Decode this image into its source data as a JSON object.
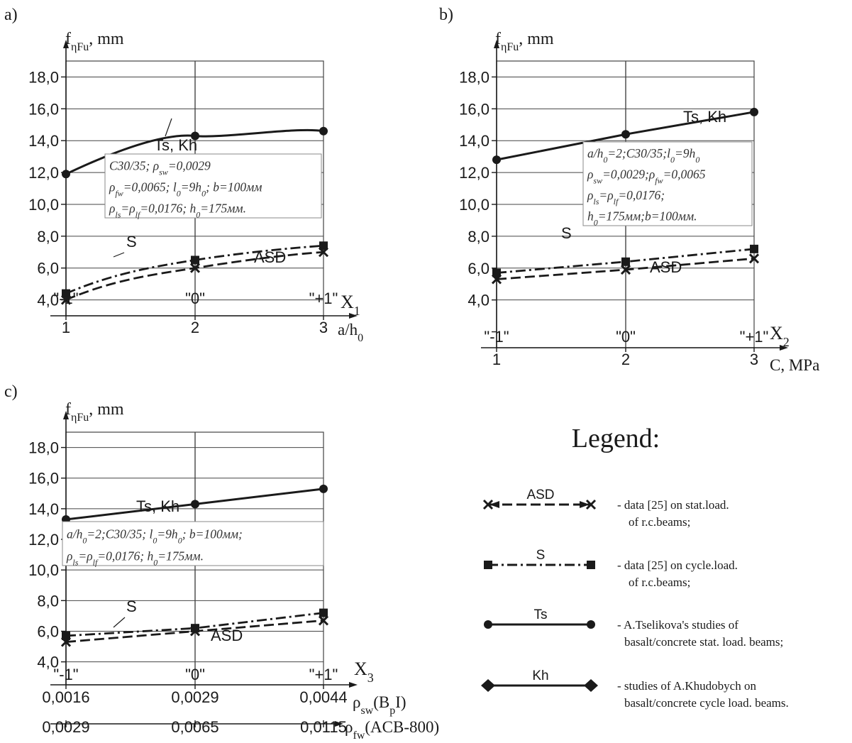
{
  "chart_data": [
    {
      "id": "a",
      "type": "line",
      "panel_label": "a)",
      "ylabel": "f",
      "ylabel_sub": "ηFu",
      "ylabel_unit": ", mm",
      "ylim": [
        3.0,
        19.0
      ],
      "yticks": [
        4.0,
        6.0,
        8.0,
        10.0,
        12.0,
        14.0,
        16.0,
        18.0
      ],
      "ytick_labels": [
        "4,0",
        "6,0",
        "8,0",
        "10,0",
        "12,0",
        "14,0",
        "16,0",
        "18,0"
      ],
      "x": [
        1,
        2,
        3
      ],
      "xtick_labels": [
        "1",
        "2",
        "3"
      ],
      "xlabel": "a/h",
      "xlabel_sub": "0",
      "coded_levels": [
        "\"-1\"",
        "\"0\"",
        "\"+1\""
      ],
      "factor": "X",
      "factor_sub": "1",
      "series": [
        {
          "key": "Ts",
          "values": [
            11.9,
            14.3,
            14.6
          ]
        },
        {
          "key": "S",
          "values": [
            4.4,
            6.5,
            7.4
          ]
        },
        {
          "key": "ASD",
          "values": [
            4.0,
            6.0,
            7.0
          ]
        }
      ],
      "labels": {
        "ts_kh": "Ts, Kh",
        "s": "S",
        "asd": "ASD"
      },
      "annotation": [
        "C30/35; ρ_sw=0,0029",
        "ρ_fw=0,0065; l_0=9h_0; b=100мм",
        "ρ_ls=ρ_lf=0,0176; h_0=175мм."
      ]
    },
    {
      "id": "b",
      "type": "line",
      "panel_label": "b)",
      "ylabel": "f",
      "ylabel_sub": "ηFu",
      "ylabel_unit": ", mm",
      "ylim": [
        1.0,
        19.0
      ],
      "yticks": [
        4.0,
        6.0,
        8.0,
        10.0,
        12.0,
        14.0,
        16.0,
        18.0
      ],
      "ytick_labels": [
        "4,0",
        "6,0",
        "8,0",
        "10,0",
        "12,0",
        "14,0",
        "16,0",
        "18,0"
      ],
      "x": [
        1,
        2,
        3
      ],
      "xtick_labels": [
        "1",
        "2",
        "3"
      ],
      "xlabel": "C, MPa",
      "coded_levels": [
        "\"-1\"",
        "\"0\"",
        "\"+1\""
      ],
      "factor": "X",
      "factor_sub": "2",
      "series": [
        {
          "key": "Ts",
          "values": [
            12.8,
            14.4,
            15.8
          ]
        },
        {
          "key": "S",
          "values": [
            5.7,
            6.4,
            7.2
          ]
        },
        {
          "key": "ASD",
          "values": [
            5.3,
            5.9,
            6.6
          ]
        }
      ],
      "labels": {
        "ts_kh": "Ts, Kh",
        "s": "S",
        "asd": "ASD"
      },
      "annotation": [
        "a/h_0=2;C30/35;l_0=9h_0",
        "ρ_sw=0,0029;ρ_fw=0,0065",
        "ρ_ls=ρ_lf=0,0176;",
        "h_0=175мм;b=100мм."
      ]
    },
    {
      "id": "c",
      "type": "line",
      "panel_label": "c)",
      "ylabel": "f",
      "ylabel_sub": "ηFu",
      "ylabel_unit": ", mm",
      "ylim": [
        2.5,
        19.0
      ],
      "yticks": [
        4.0,
        6.0,
        8.0,
        10.0,
        12.0,
        14.0,
        16.0,
        18.0
      ],
      "ytick_labels": [
        "4,0",
        "6,0",
        "8,0",
        "10,0",
        "12,0",
        "14,0",
        "16,0",
        "18,0"
      ],
      "x": [
        0.0016,
        0.0029,
        0.0044
      ],
      "xtick_labels": [
        "0,0016",
        "0,0029",
        "0,0044"
      ],
      "xlabel": "ρ",
      "xlabel_sub": "sw",
      "xlabel_rest": "(B",
      "xlabel_rest_sub": "p",
      "xlabel_end": "I)",
      "x2": [
        0.0029,
        0.0065,
        0.0115
      ],
      "x2tick_labels": [
        "0,0029",
        "0,0065",
        "0,0115"
      ],
      "x2label": "ρ",
      "x2label_sub": "fw",
      "x2label_rest": "(ACB-800)",
      "coded_levels": [
        "\"-1\"",
        "\"0\"",
        "\"+1\""
      ],
      "factor": "X",
      "factor_sub": "3",
      "series": [
        {
          "key": "Ts",
          "values": [
            13.3,
            14.3,
            15.3
          ]
        },
        {
          "key": "S",
          "values": [
            5.7,
            6.2,
            7.2
          ]
        },
        {
          "key": "ASD",
          "values": [
            5.3,
            6.0,
            6.7
          ]
        }
      ],
      "labels": {
        "ts_kh": "Ts, Kh",
        "s": "S",
        "asd": "ASD"
      },
      "annotation": [
        "a/h_0=2;C30/35; l_0=9h_0; b=100мм;",
        "ρ_ls=ρ_lf=0,0176; h_0=175мм."
      ]
    }
  ],
  "legend": {
    "title": "Legend:",
    "entries": [
      {
        "key": "ASD",
        "line": "dashed",
        "marker": "x",
        "label": "ASD",
        "text": [
          "- data [25] on stat.load.",
          "of r.c.beams;"
        ]
      },
      {
        "key": "S",
        "line": "dashdot",
        "marker": "square",
        "label": "S",
        "text": [
          "- data [25] on cycle.load.",
          "of r.c.beams;"
        ]
      },
      {
        "key": "Ts",
        "line": "solid",
        "marker": "circle",
        "label": "Ts",
        "text": [
          "- A.Tselikova's studies of",
          "basalt/concrete stat. load. beams;"
        ]
      },
      {
        "key": "Kh",
        "line": "solid",
        "marker": "diamond",
        "label": "Kh",
        "text": [
          "- studies of A.Khudobych on",
          "basalt/concrete cycle load. beams."
        ]
      }
    ]
  },
  "colors": {
    "ink": "#1a1a1a",
    "grid": "#444444",
    "annotation_border": "#888888",
    "annotation_text": "#333333"
  }
}
